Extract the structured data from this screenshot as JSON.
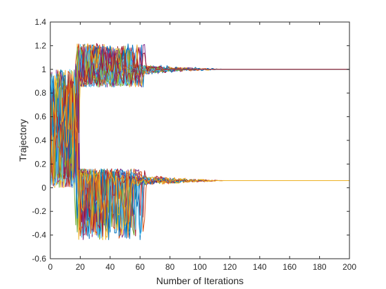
{
  "chart_data": {
    "type": "line",
    "title": "",
    "xlabel": "Number of Iterations",
    "ylabel": "Trajectory",
    "xlim": [
      0,
      200
    ],
    "ylim": [
      -0.6,
      1.4
    ],
    "xticks": [
      0,
      20,
      40,
      60,
      80,
      100,
      120,
      140,
      160,
      180,
      200
    ],
    "yticks": [
      -0.6,
      -0.4,
      -0.2,
      0,
      0.2,
      0.4,
      0.6,
      0.8,
      1,
      1.2,
      1.4
    ],
    "grid": false,
    "legend": "none",
    "colors": [
      "#0072BD",
      "#D95319",
      "#EDB120",
      "#7E2F8E",
      "#77AC30",
      "#4DBEEE",
      "#A2142F"
    ],
    "groups": [
      {
        "name_visible": false,
        "converged_value": 1.0,
        "num_trajectories": 28,
        "initial_range": [
          0,
          1
        ],
        "transient_until_iteration": 20,
        "oscillation_range": [
          0.85,
          1.22
        ],
        "oscillation_end_range": [
          40,
          65
        ],
        "tail_end_range": [
          60,
          120
        ]
      },
      {
        "name_visible": false,
        "converged_value": 0.06,
        "num_trajectories": 28,
        "initial_range": [
          0,
          1
        ],
        "transient_until_iteration": 20,
        "oscillation_range": [
          -0.44,
          0.16
        ],
        "oscillation_end_range": [
          40,
          65
        ],
        "tail_end_range": [
          60,
          120
        ]
      }
    ]
  }
}
